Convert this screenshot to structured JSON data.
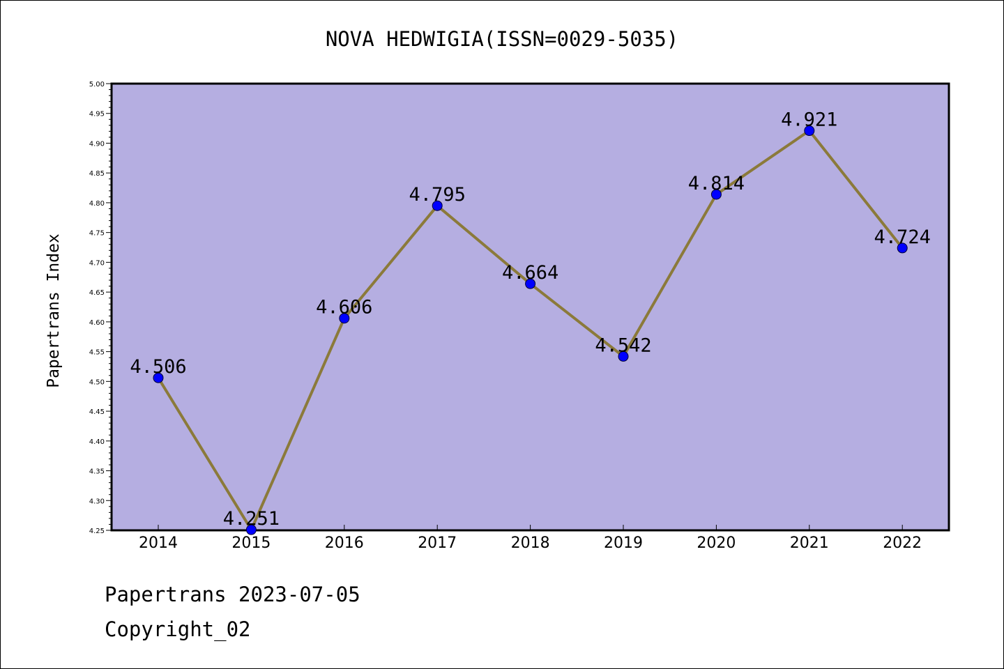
{
  "chart_data": {
    "type": "line",
    "title": "NOVA HEDWIGIA(ISSN=0029-5035)",
    "xlabel": "",
    "ylabel": "Papertrans Index",
    "categories": [
      "2014",
      "2015",
      "2016",
      "2017",
      "2018",
      "2019",
      "2020",
      "2021",
      "2022"
    ],
    "values": [
      4.506,
      4.251,
      4.606,
      4.795,
      4.664,
      4.542,
      4.814,
      4.921,
      4.724
    ],
    "data_labels": [
      "4.506",
      "4.251",
      "4.606",
      "4.795",
      "4.664",
      "4.542",
      "4.814",
      "4.921",
      "4.724"
    ],
    "ylim": [
      4.25,
      5.0
    ],
    "yticks": [
      "4.25",
      "4.30",
      "4.35",
      "4.40",
      "4.45",
      "4.50",
      "4.55",
      "4.60",
      "4.65",
      "4.70",
      "4.75",
      "4.80",
      "4.85",
      "4.90",
      "4.95",
      "5.00"
    ],
    "ytick_values": [
      4.25,
      4.3,
      4.35,
      4.4,
      4.45,
      4.5,
      4.55,
      4.6,
      4.65,
      4.7,
      4.75,
      4.8,
      4.85,
      4.9,
      4.95,
      5.0
    ],
    "grid": false,
    "legend": "none",
    "colors": {
      "plot_background": "#b5aee1",
      "line": "#8b7a3a",
      "marker": "#0000ff",
      "axis": "#000000"
    }
  },
  "footer": {
    "date_text": "Papertrans 2023-07-05",
    "copyright_text": "Copyright_02"
  }
}
